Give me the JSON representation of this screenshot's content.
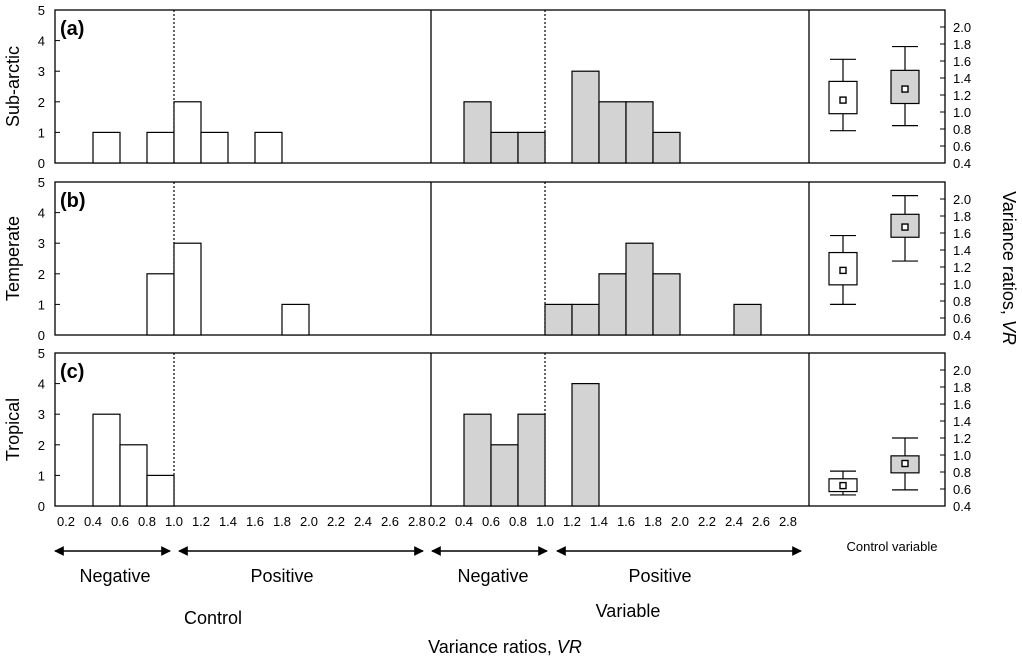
{
  "chart_data": {
    "type": "bar",
    "panels": [
      {
        "letter": "(a)",
        "row_label": "Sub-arctic",
        "control_bins": [
          [
            0.4,
            0.6,
            1
          ],
          [
            0.8,
            1.0,
            1
          ],
          [
            1.0,
            1.2,
            2
          ],
          [
            1.2,
            1.4,
            1
          ],
          [
            1.6,
            1.8,
            1
          ]
        ],
        "variable_bins": [
          [
            0.4,
            0.6,
            2
          ],
          [
            0.6,
            0.8,
            1
          ],
          [
            0.8,
            1.0,
            1
          ],
          [
            1.2,
            1.4,
            3
          ],
          [
            1.4,
            1.6,
            2
          ],
          [
            1.6,
            1.8,
            2
          ],
          [
            1.8,
            2.0,
            1
          ]
        ],
        "box_control": {
          "whisker_low": 0.78,
          "q1": 0.98,
          "median": 1.14,
          "q3": 1.36,
          "whisker_high": 1.62
        },
        "box_variable": {
          "whisker_low": 0.84,
          "q1": 1.1,
          "median": 1.27,
          "q3": 1.49,
          "whisker_high": 1.77
        }
      },
      {
        "letter": "(b)",
        "row_label": "Temperate",
        "control_bins": [
          [
            0.8,
            1.0,
            2
          ],
          [
            1.0,
            1.2,
            3
          ],
          [
            1.8,
            2.0,
            1
          ]
        ],
        "variable_bins": [
          [
            1.0,
            1.2,
            1
          ],
          [
            1.2,
            1.4,
            1
          ],
          [
            1.4,
            1.6,
            2
          ],
          [
            1.6,
            1.8,
            3
          ],
          [
            1.8,
            2.0,
            2
          ],
          [
            2.4,
            2.6,
            1
          ]
        ],
        "box_control": {
          "whisker_low": 0.76,
          "q1": 0.99,
          "median": 1.16,
          "q3": 1.37,
          "whisker_high": 1.57
        },
        "box_variable": {
          "whisker_low": 1.27,
          "q1": 1.55,
          "median": 1.67,
          "q3": 1.82,
          "whisker_high": 2.04
        }
      },
      {
        "letter": "(c)",
        "row_label": "Tropical",
        "control_bins": [
          [
            0.4,
            0.6,
            3
          ],
          [
            0.6,
            0.8,
            2
          ],
          [
            0.8,
            1.0,
            1
          ]
        ],
        "variable_bins": [
          [
            0.4,
            0.6,
            3
          ],
          [
            0.6,
            0.8,
            2
          ],
          [
            0.8,
            1.0,
            3
          ],
          [
            1.2,
            1.4,
            4
          ]
        ],
        "box_control": {
          "whisker_low": 0.53,
          "q1": 0.57,
          "median": 0.64,
          "q3": 0.72,
          "whisker_high": 0.81
        },
        "box_variable": {
          "whisker_low": 0.59,
          "q1": 0.79,
          "median": 0.9,
          "q3": 0.99,
          "whisker_high": 1.2
        }
      }
    ],
    "x_ticks": [
      "0.2",
      "0.4",
      "0.6",
      "0.8",
      "1.0",
      "1.2",
      "1.4",
      "1.6",
      "1.8",
      "2.0",
      "2.2",
      "2.4",
      "2.6",
      "2.8"
    ],
    "xlim": [
      0.2,
      2.9
    ],
    "y_ticks": [
      "0",
      "1",
      "2",
      "3",
      "4",
      "5"
    ],
    "ylim": [
      0,
      5
    ],
    "y2_ticks": [
      "0.4",
      "0.6",
      "0.8",
      "1.0",
      "1.2",
      "1.4",
      "1.6",
      "1.8",
      "2.0"
    ],
    "y2lim": [
      0.4,
      2.2
    ],
    "y2label_prefix": "Variance ratios,",
    "y2label_italic": "VR",
    "xlabel_prefix": "Variance ratios,",
    "xlabel_italic": "VR",
    "group_labels": [
      "Control",
      "Variable"
    ],
    "box_xlabel": "Control variable",
    "arrow_labels": [
      "Negative",
      "Positive"
    ],
    "colors": {
      "control_fill": "#ffffff",
      "variable_fill": "#d3d3d3",
      "stroke": "#000000"
    }
  }
}
